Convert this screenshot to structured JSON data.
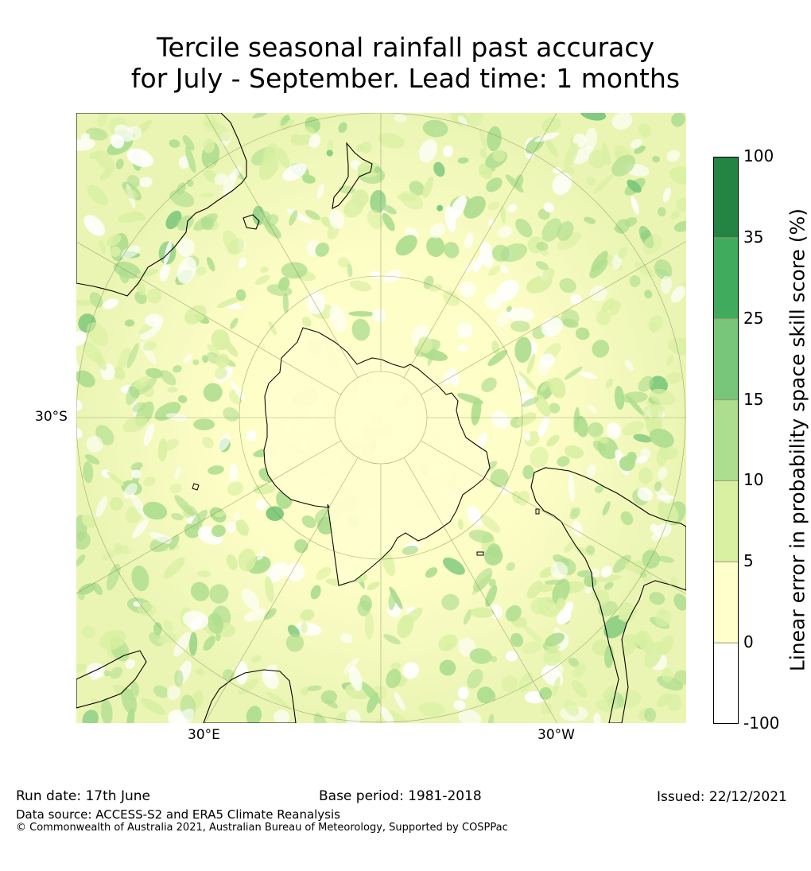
{
  "title": {
    "line1": "Tercile seasonal rainfall past accuracy",
    "line2": "for July - September. Lead time: 1 months"
  },
  "map": {
    "projection": "south polar stereographic",
    "labels": {
      "lat": "30°S",
      "lon_east": "30°E",
      "lon_west": "30°W"
    }
  },
  "colorbar": {
    "title": "Linear error in probability space skill score (%)",
    "ticks": [
      "100",
      "35",
      "25",
      "15",
      "10",
      "5",
      "0",
      "-100"
    ],
    "bands": [
      {
        "range": "-100 to 0",
        "color": "#ffffff"
      },
      {
        "range": "0 to 5",
        "color": "#ffffcc"
      },
      {
        "range": "5 to 10",
        "color": "#d9f0a3"
      },
      {
        "range": "10 to 15",
        "color": "#addd8e"
      },
      {
        "range": "15 to 25",
        "color": "#78c679"
      },
      {
        "range": "25 to 35",
        "color": "#41ab5d"
      },
      {
        "range": "35 to 100",
        "color": "#238443"
      }
    ]
  },
  "footer": {
    "run_date": "Run date: 17th June",
    "base_period": "Base period: 1981-2018",
    "issued": "Issued: 22/12/2021",
    "data_source": "Data source: ACCESS-S2 and ERA5 Climate Reanalysis",
    "copyright": "© Commonwealth of Australia 2021, Australian Bureau of Meteorology, Supported by COSPPac"
  }
}
